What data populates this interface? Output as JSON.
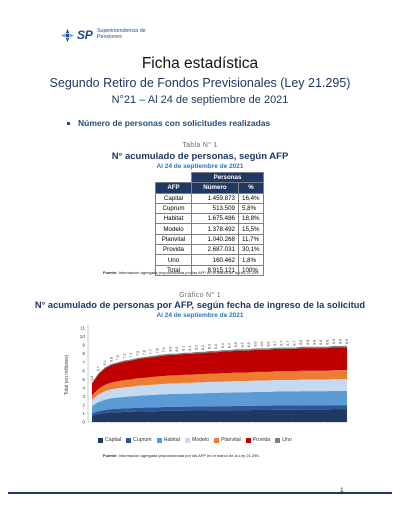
{
  "header": {
    "logo_sp": "SP",
    "logo_org": [
      "Superintendencia de",
      "Pensiones"
    ]
  },
  "title": "Ficha estadística",
  "subtitle": "Segundo Retiro de Fondos Previsionales (Ley 21.295)",
  "edition": "N°21 – Al 24 de septiembre de 2021",
  "section": "Número de personas con solicitudes realizadas",
  "table": {
    "caption": "Tabla N° 1",
    "title": "N° acumulado de personas, según AFP",
    "date": "Al 24 de septiembre de 2021",
    "group_header": "Personas",
    "headers": [
      "AFP",
      "Número",
      "%"
    ],
    "rows": [
      [
        "Capital",
        "1.459.873",
        "16,4%"
      ],
      [
        "Cuprum",
        "513.509",
        "5,8%"
      ],
      [
        "Habitat",
        "1.675.486",
        "18,8%"
      ],
      [
        "Modelo",
        "1.378.492",
        "15,5%"
      ],
      [
        "Planvital",
        "1.040.268",
        "11,7%"
      ],
      [
        "Provida",
        "2.687.031",
        "30,1%"
      ],
      [
        "Uno",
        "160.462",
        "1,8%"
      ],
      [
        "Total",
        "8.915.121",
        "100%"
      ]
    ],
    "source_label": "Fuente:",
    "source": "Información agregada proporcionada por las AFP en el marco de la Ley 21.295."
  },
  "figure": {
    "caption": "Gráfico N° 1",
    "title": "N° acumulado de personas por AFP, según fecha de ingreso de la solicitud",
    "date": "Al 24 de septiembre de 2021",
    "source_label": "Fuente:",
    "source": "Información agregada proporcionada por las AFP en el marco de la Ley 21.295."
  },
  "chart_data": {
    "type": "area",
    "stacked": true,
    "ylabel": "Total (en millones)",
    "ylim": [
      0,
      11
    ],
    "yticks": [
      0,
      1,
      2,
      3,
      4,
      5,
      6,
      7,
      8,
      9,
      10,
      11
    ],
    "grid": false,
    "legend_position": "bottom",
    "point_labels": [
      "4,6",
      "5,7",
      "6,4",
      "6,8",
      "7,0",
      "7,2",
      "7,3",
      "7,5",
      "7,6",
      "7,7",
      "7,8",
      "7,9",
      "8,0",
      "8,0",
      "8,1",
      "8,1",
      "8,2",
      "8,2",
      "8,3",
      "8,3",
      "8,4",
      "8,4",
      "8,5",
      "8,5",
      "8,5",
      "8,6",
      "8,6",
      "8,6",
      "8,7",
      "8,7",
      "8,7",
      "8,7",
      "8,8",
      "8,8",
      "8,8",
      "8,8",
      "8,8",
      "8,9",
      "8,9",
      "8,9"
    ],
    "totals": [
      4.6,
      5.7,
      6.4,
      6.8,
      7.0,
      7.2,
      7.3,
      7.5,
      7.6,
      7.7,
      7.8,
      7.9,
      8.0,
      8.0,
      8.1,
      8.1,
      8.2,
      8.2,
      8.3,
      8.3,
      8.4,
      8.4,
      8.5,
      8.5,
      8.5,
      8.6,
      8.6,
      8.6,
      8.7,
      8.7,
      8.7,
      8.7,
      8.8,
      8.8,
      8.8,
      8.8,
      8.8,
      8.9,
      8.9,
      8.9
    ],
    "series": [
      {
        "name": "Capital",
        "color": "#1f3864",
        "share": 0.164
      },
      {
        "name": "Cuprum",
        "color": "#2f5597",
        "share": 0.058
      },
      {
        "name": "Habitat",
        "color": "#5b9bd5",
        "share": 0.188
      },
      {
        "name": "Modelo",
        "color": "#c5d9f1",
        "share": 0.155
      },
      {
        "name": "Planvital",
        "color": "#ed7d31",
        "share": 0.117
      },
      {
        "name": "Provida",
        "color": "#c00000",
        "share": 0.301
      },
      {
        "name": "Uno",
        "color": "#7f7f7f",
        "share": 0.018
      }
    ]
  },
  "footer": {
    "page": "1"
  }
}
